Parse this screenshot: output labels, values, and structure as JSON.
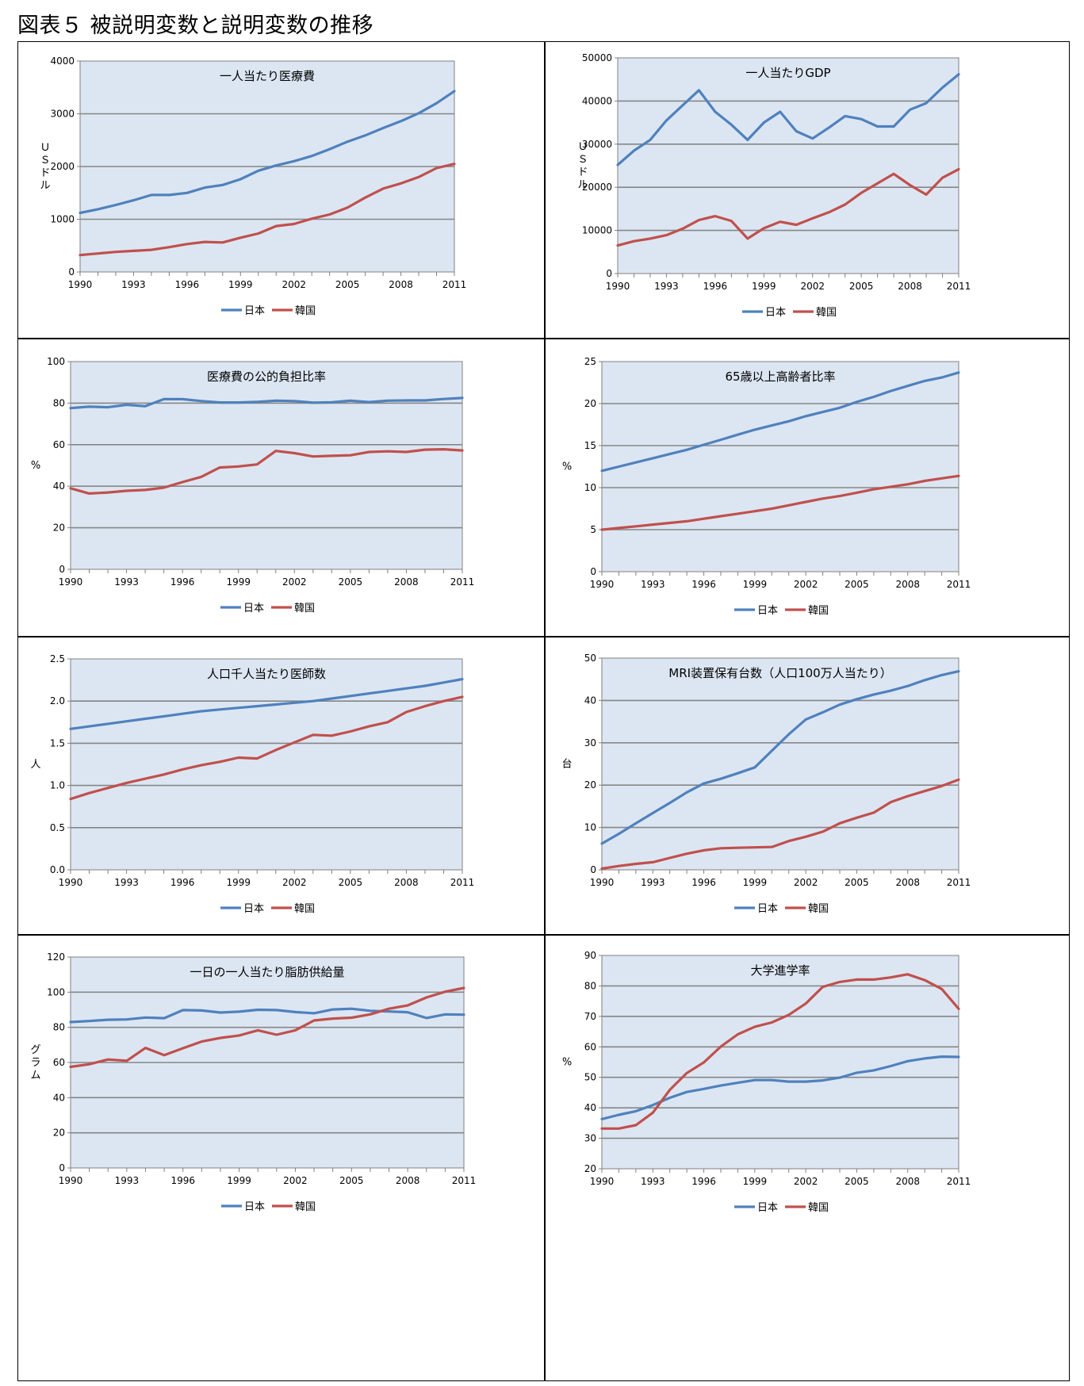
{
  "figure_title": "図表５ 被説明変数と説明変数の推移",
  "legend": {
    "japan": "日本",
    "korea": "韓国"
  },
  "colors": {
    "japan": "#4f81bd",
    "korea": "#c0504d",
    "plot_bg": "#dce6f2",
    "grid": "#868686"
  },
  "chart_data": [
    {
      "type": "line",
      "title": "一人当たり医療費",
      "ylabel": "ＵＳドル",
      "ylim": [
        0,
        4000
      ],
      "yticks": [
        "0",
        "1000",
        "2000",
        "3000",
        "4000"
      ],
      "xticks": [
        "1990",
        "1993",
        "1996",
        "1999",
        "2002",
        "2005",
        "2008",
        "2011"
      ],
      "x": [
        1990,
        1991,
        1992,
        1993,
        1994,
        1995,
        1996,
        1997,
        1998,
        1999,
        2000,
        2001,
        2002,
        2003,
        2004,
        2005,
        2006,
        2007,
        2008,
        2009,
        2010,
        2011
      ],
      "series": [
        {
          "name": "日本",
          "values": [
            1120,
            1190,
            1270,
            1360,
            1460,
            1460,
            1500,
            1600,
            1650,
            1760,
            1920,
            2020,
            2100,
            2200,
            2330,
            2470,
            2590,
            2730,
            2860,
            3010,
            3200,
            3430
          ]
        },
        {
          "name": "韓国",
          "values": [
            320,
            350,
            380,
            400,
            420,
            470,
            530,
            570,
            560,
            650,
            730,
            870,
            910,
            1010,
            1090,
            1220,
            1410,
            1580,
            1680,
            1800,
            1970,
            2050
          ]
        }
      ]
    },
    {
      "type": "line",
      "title": "一人当たりGDP",
      "ylabel": "ＵＳドル",
      "ylim": [
        0,
        50000
      ],
      "yticks": [
        "0",
        "10000",
        "20000",
        "30000",
        "40000",
        "50000"
      ],
      "xticks": [
        "1990",
        "1993",
        "1996",
        "1999",
        "2002",
        "2005",
        "2008",
        "2011"
      ],
      "x": [
        1990,
        1991,
        1992,
        1993,
        1994,
        1995,
        1996,
        1997,
        1998,
        1999,
        2000,
        2001,
        2002,
        2003,
        2004,
        2005,
        2006,
        2007,
        2008,
        2009,
        2010,
        2011
      ],
      "series": [
        {
          "name": "日本",
          "values": [
            25200,
            28500,
            31000,
            35500,
            39000,
            42500,
            37500,
            34500,
            31000,
            35000,
            37500,
            33000,
            31300,
            33800,
            36500,
            35800,
            34100,
            34100,
            38000,
            39500,
            43100,
            46200
          ]
        },
        {
          "name": "韓国",
          "values": [
            6500,
            7500,
            8100,
            8900,
            10400,
            12400,
            13300,
            12200,
            8100,
            10500,
            12000,
            11300,
            12800,
            14200,
            16000,
            18700,
            20900,
            23100,
            20500,
            18300,
            22200,
            24200
          ]
        }
      ]
    },
    {
      "type": "line",
      "title": "医療費の公的負担比率",
      "ylabel": "%",
      "ylim": [
        0,
        100
      ],
      "yticks": [
        "0",
        "20",
        "40",
        "60",
        "80",
        "100"
      ],
      "xticks": [
        "1990",
        "1993",
        "1996",
        "1999",
        "2002",
        "2005",
        "2008",
        "2011"
      ],
      "x": [
        1990,
        1991,
        1992,
        1993,
        1994,
        1995,
        1996,
        1997,
        1998,
        1999,
        2000,
        2001,
        2002,
        2003,
        2004,
        2005,
        2006,
        2007,
        2008,
        2009,
        2010,
        2011
      ],
      "series": [
        {
          "name": "日本",
          "values": [
            77.6,
            78.3,
            78.0,
            79.2,
            78.5,
            81.9,
            81.9,
            81.0,
            80.3,
            80.3,
            80.6,
            81.2,
            81.0,
            80.2,
            80.4,
            81.2,
            80.5,
            81.2,
            81.3,
            81.3,
            82.0,
            82.5
          ]
        },
        {
          "name": "韓国",
          "values": [
            39.0,
            36.5,
            37.0,
            37.8,
            38.2,
            39.3,
            42.0,
            44.5,
            49.0,
            49.5,
            50.5,
            57.0,
            55.9,
            54.3,
            54.6,
            54.9,
            56.5,
            56.8,
            56.5,
            57.6,
            57.8,
            57.2
          ]
        }
      ]
    },
    {
      "type": "line",
      "title": "65歳以上高齢者比率",
      "ylabel": "%",
      "ylim": [
        0,
        25
      ],
      "yticks": [
        "0",
        "5",
        "10",
        "15",
        "20",
        "25"
      ],
      "xticks": [
        "1990",
        "1993",
        "1996",
        "1999",
        "2002",
        "2005",
        "2008",
        "2011"
      ],
      "x": [
        1990,
        1991,
        1992,
        1993,
        1994,
        1995,
        1996,
        1997,
        1998,
        1999,
        2000,
        2001,
        2002,
        2003,
        2004,
        2005,
        2006,
        2007,
        2008,
        2009,
        2010,
        2011
      ],
      "series": [
        {
          "name": "日本",
          "values": [
            12.0,
            12.5,
            13.0,
            13.5,
            14.0,
            14.5,
            15.1,
            15.7,
            16.3,
            16.9,
            17.4,
            17.9,
            18.5,
            19.0,
            19.5,
            20.2,
            20.8,
            21.5,
            22.1,
            22.7,
            23.1,
            23.7
          ]
        },
        {
          "name": "韓国",
          "values": [
            5.0,
            5.2,
            5.4,
            5.6,
            5.8,
            6.0,
            6.3,
            6.6,
            6.9,
            7.2,
            7.5,
            7.9,
            8.3,
            8.7,
            9.0,
            9.4,
            9.8,
            10.1,
            10.4,
            10.8,
            11.1,
            11.4
          ]
        }
      ]
    },
    {
      "type": "line",
      "title": "人口千人当たり医師数",
      "ylabel": "人",
      "ylim": [
        0,
        2.5
      ],
      "yticks": [
        "0.0",
        "0.5",
        "1.0",
        "1.5",
        "2.0",
        "2.5"
      ],
      "xticks": [
        "1990",
        "1993",
        "1996",
        "1999",
        "2002",
        "2005",
        "2008",
        "2011"
      ],
      "x": [
        1990,
        1991,
        1992,
        1993,
        1994,
        1995,
        1996,
        1997,
        1998,
        1999,
        2000,
        2001,
        2002,
        2003,
        2004,
        2005,
        2006,
        2007,
        2008,
        2009,
        2010,
        2011
      ],
      "series": [
        {
          "name": "日本",
          "values": [
            1.67,
            1.7,
            1.73,
            1.76,
            1.79,
            1.82,
            1.85,
            1.88,
            1.9,
            1.92,
            1.94,
            1.96,
            1.98,
            2.0,
            2.03,
            2.06,
            2.09,
            2.12,
            2.15,
            2.18,
            2.22,
            2.26
          ]
        },
        {
          "name": "韓国",
          "values": [
            0.84,
            0.91,
            0.97,
            1.03,
            1.08,
            1.13,
            1.19,
            1.24,
            1.28,
            1.33,
            1.32,
            1.42,
            1.51,
            1.6,
            1.59,
            1.64,
            1.7,
            1.75,
            1.87,
            1.94,
            2.0,
            2.05
          ]
        }
      ]
    },
    {
      "type": "line",
      "title": "MRI装置保有台数（人口100万人当たり）",
      "ylabel": "台",
      "ylim": [
        0,
        50
      ],
      "yticks": [
        "0",
        "10",
        "20",
        "30",
        "40",
        "50"
      ],
      "xticks": [
        "1990",
        "1993",
        "1996",
        "1999",
        "2002",
        "2005",
        "2008",
        "2011"
      ],
      "x": [
        1990,
        1991,
        1992,
        1993,
        1994,
        1995,
        1996,
        1997,
        1998,
        1999,
        2000,
        2001,
        2002,
        2003,
        2004,
        2005,
        2006,
        2007,
        2008,
        2009,
        2010,
        2011
      ],
      "series": [
        {
          "name": "日本",
          "values": [
            6.2,
            8.5,
            11.0,
            13.4,
            15.8,
            18.3,
            20.4,
            21.5,
            22.8,
            24.2,
            28.1,
            32.0,
            35.5,
            37.2,
            39.0,
            40.3,
            41.4,
            42.3,
            43.4,
            44.8,
            46.0,
            46.9
          ]
        },
        {
          "name": "韓国",
          "values": [
            0.3,
            0.9,
            1.4,
            1.8,
            2.8,
            3.8,
            4.6,
            5.1,
            5.2,
            5.3,
            5.4,
            6.8,
            7.8,
            9.0,
            11.0,
            12.3,
            13.5,
            16.0,
            17.4,
            18.6,
            19.8,
            21.3
          ]
        }
      ]
    },
    {
      "type": "line",
      "title": "一日の一人当たり脂肪供給量",
      "ylabel": "グラム",
      "ylim": [
        0,
        120
      ],
      "yticks": [
        "0",
        "20",
        "40",
        "60",
        "80",
        "100",
        "120"
      ],
      "xticks": [
        "1990",
        "1993",
        "1996",
        "1999",
        "2002",
        "2005",
        "2008",
        "2011"
      ],
      "x": [
        1990,
        1991,
        1992,
        1993,
        1994,
        1995,
        1996,
        1997,
        1998,
        1999,
        2000,
        2001,
        2002,
        2003,
        2004,
        2005,
        2006,
        2007,
        2008,
        2009,
        2010,
        2011
      ],
      "series": [
        {
          "name": "日本",
          "values": [
            83.0,
            83.6,
            84.3,
            84.5,
            85.6,
            85.2,
            89.8,
            89.6,
            88.4,
            88.9,
            90.0,
            89.8,
            88.7,
            88.0,
            90.2,
            90.6,
            89.4,
            89.0,
            88.6,
            85.3,
            87.4,
            87.2
          ]
        },
        {
          "name": "韓国",
          "values": [
            57.5,
            59.0,
            61.7,
            61.0,
            68.3,
            64.2,
            68.1,
            71.9,
            74.0,
            75.4,
            78.3,
            75.8,
            78.3,
            83.9,
            85.0,
            85.5,
            87.4,
            90.6,
            92.5,
            97.0,
            100.3,
            102.4
          ]
        }
      ]
    },
    {
      "type": "line",
      "title": "大学進学率",
      "ylabel": "%",
      "ylim": [
        20,
        90
      ],
      "yticks": [
        "20",
        "30",
        "40",
        "50",
        "60",
        "70",
        "80",
        "90"
      ],
      "xticks": [
        "1990",
        "1993",
        "1996",
        "1999",
        "2002",
        "2005",
        "2008",
        "2011"
      ],
      "x": [
        1990,
        1991,
        1992,
        1993,
        1994,
        1995,
        1996,
        1997,
        1998,
        1999,
        2000,
        2001,
        2002,
        2003,
        2004,
        2005,
        2006,
        2007,
        2008,
        2009,
        2010,
        2011
      ],
      "series": [
        {
          "name": "日本",
          "values": [
            36.3,
            37.7,
            38.9,
            40.9,
            43.3,
            45.2,
            46.2,
            47.3,
            48.2,
            49.1,
            49.1,
            48.6,
            48.6,
            49.0,
            49.9,
            51.5,
            52.3,
            53.7,
            55.3,
            56.2,
            56.8,
            56.7
          ]
        },
        {
          "name": "韓国",
          "values": [
            33.2,
            33.2,
            34.3,
            38.4,
            45.9,
            51.4,
            54.9,
            60.1,
            64.1,
            66.6,
            68.0,
            70.5,
            74.2,
            79.7,
            81.3,
            82.1,
            82.1,
            82.8,
            83.8,
            81.9,
            79.0,
            72.5
          ]
        }
      ]
    }
  ]
}
